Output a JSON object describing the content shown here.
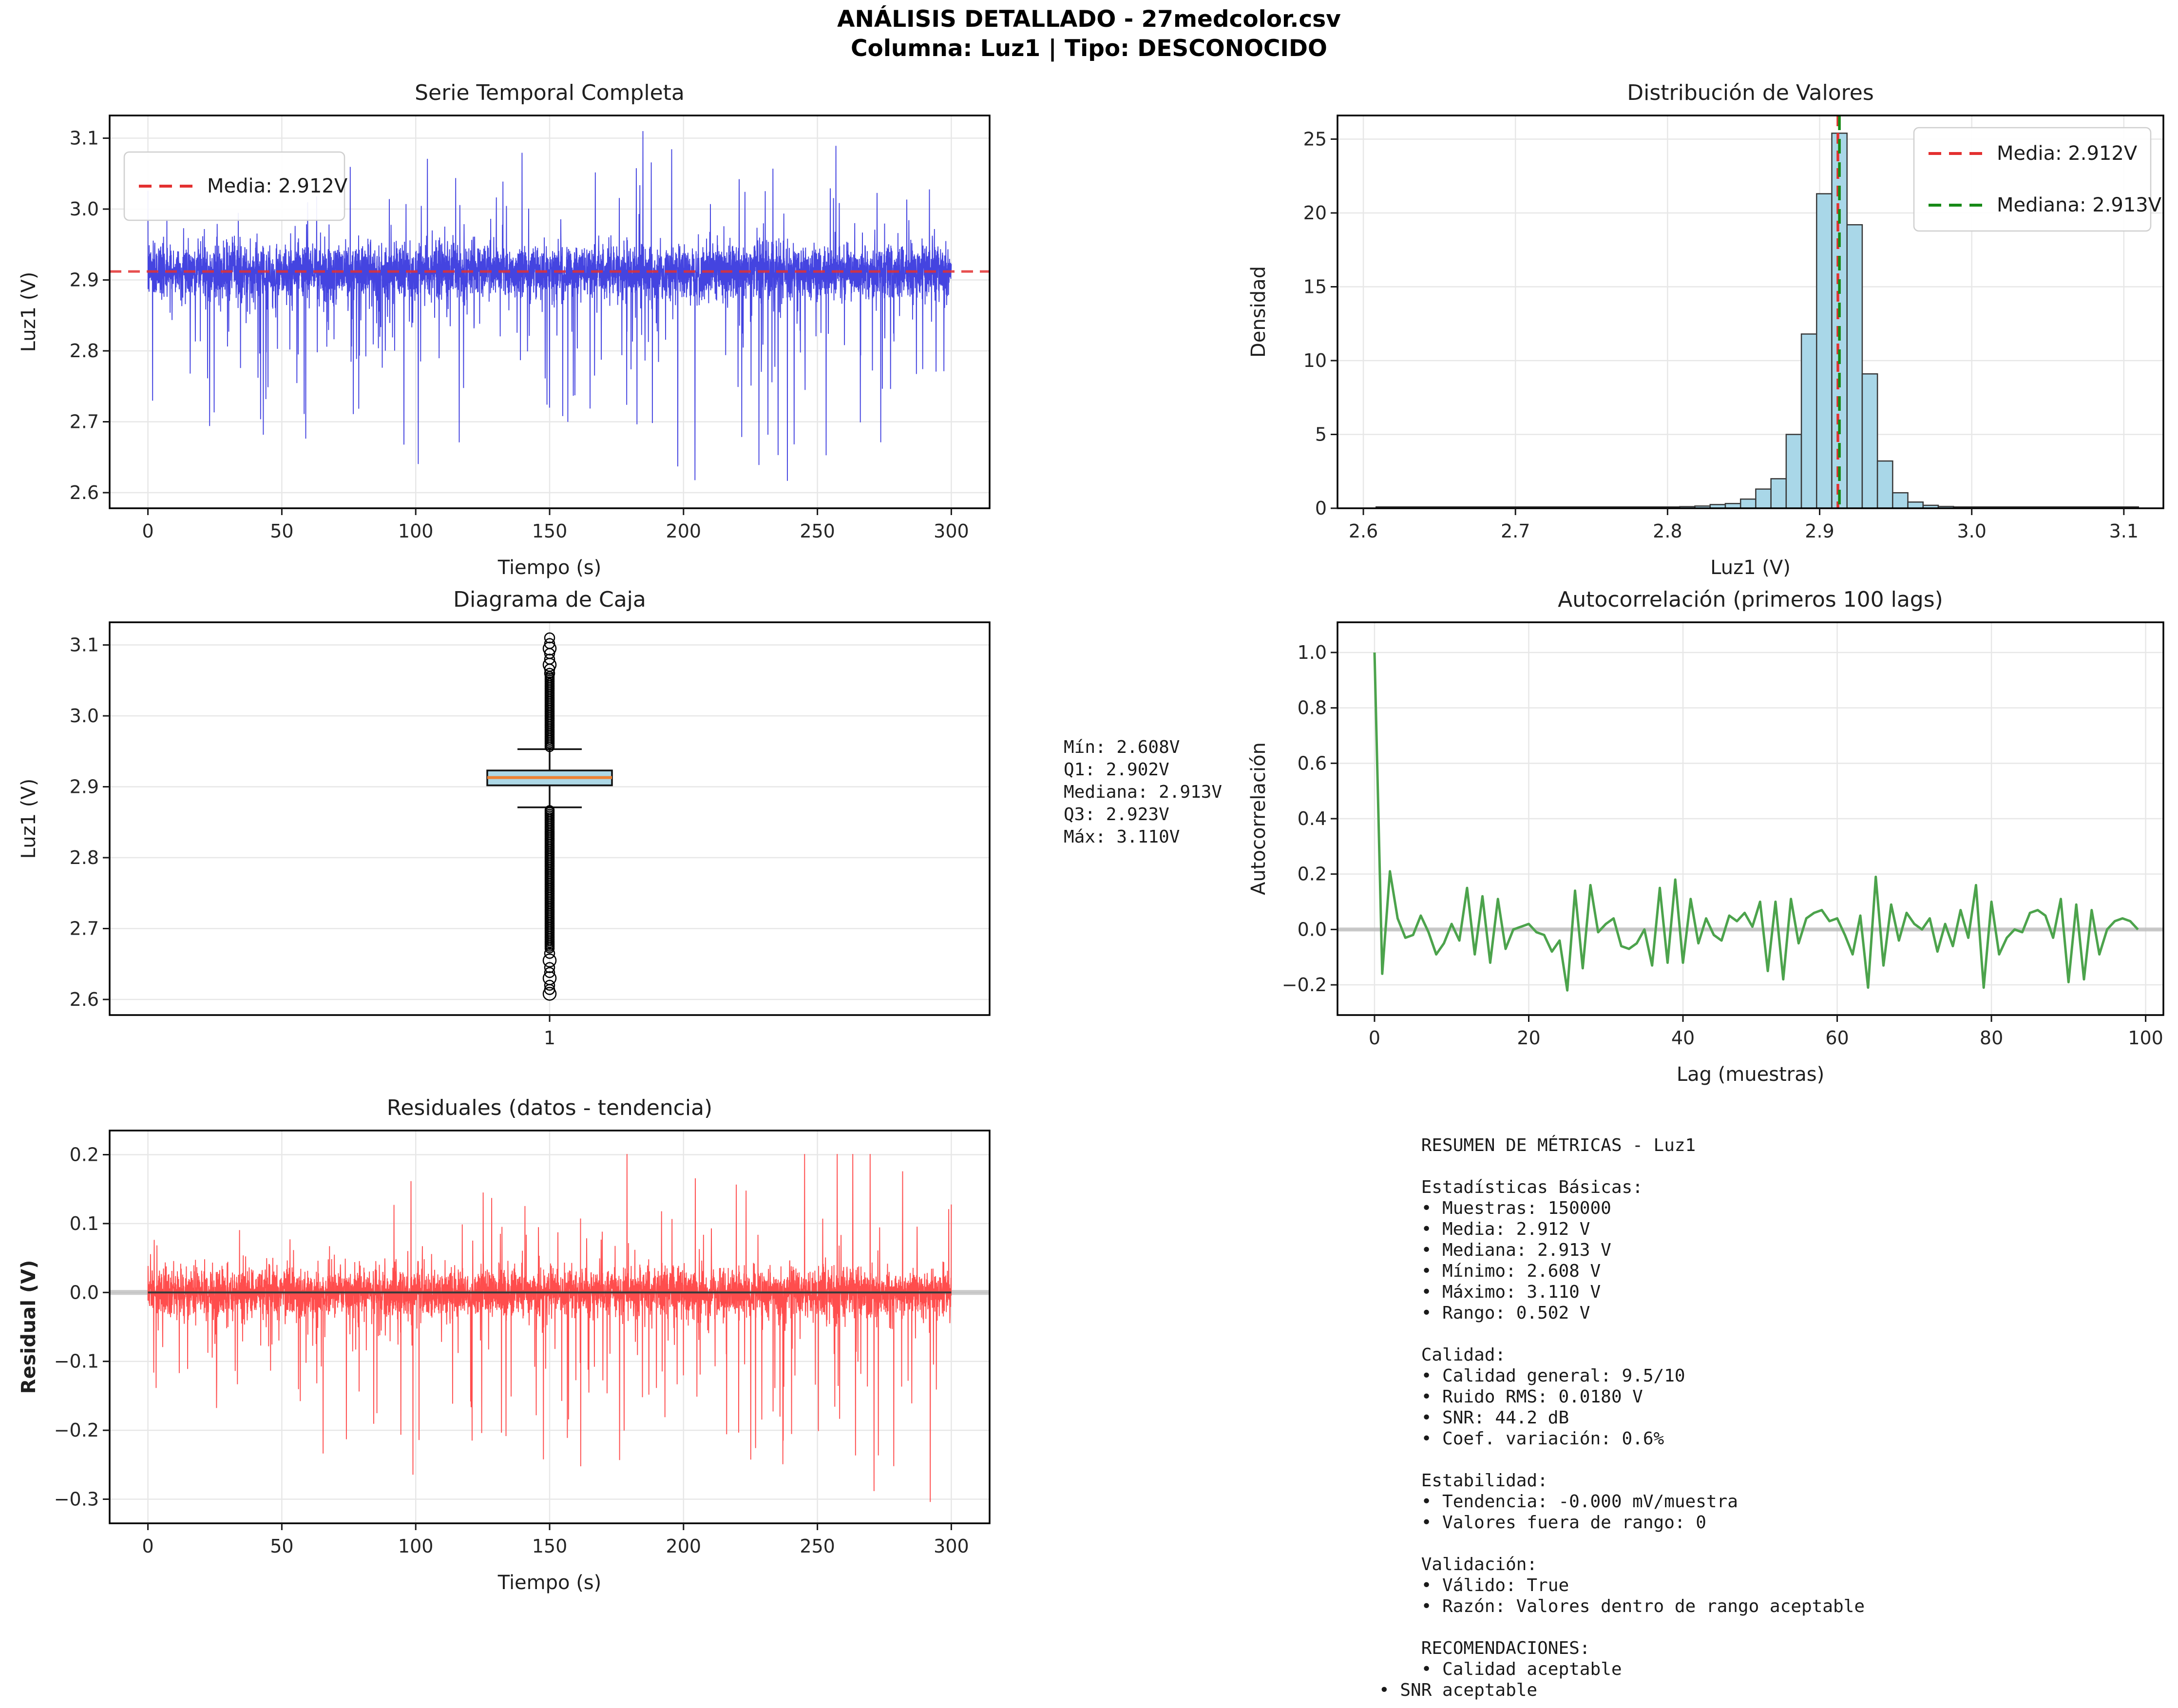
{
  "header": {
    "title_line1": "ANÁLISIS DETALLADO - 27medcolor.csv",
    "title_line2": "Columna: Luz1 | Tipo: DESCONOCIDO"
  },
  "colors": {
    "text": "#1f1f1f",
    "tick_text": "#262626",
    "grid": "#e7e7e7",
    "spine": "#000000",
    "series_blue": "#4444e0",
    "mean_red": "#e33030",
    "median_green": "#178a17",
    "hist_fill": "#a9d7e8",
    "hist_edge": "#383838",
    "box_fill": "#add8e6",
    "box_median_orange": "#ee8233",
    "acf_green": "#4ca34c",
    "resid_red": "#ff4d4d",
    "zero_gray": "#bbbbbb",
    "trend_dark": "#3a3a3a",
    "legend_border": "#cfcfcf",
    "legend_bg": "#ffffff"
  },
  "stats_block": {
    "lines": [
      "Mín: 2.608V",
      "Q1: 2.902V",
      "Mediana: 2.913V",
      "Q3: 2.923V",
      "Máx: 3.110V"
    ]
  },
  "metrics_block": {
    "lines": [
      "    RESUMEN DE MÉTRICAS - Luz1",
      "",
      "    Estadísticas Básicas:",
      "    • Muestras: 150000",
      "    • Media: 2.912 V",
      "    • Mediana: 2.913 V",
      "    • Mínimo: 2.608 V",
      "    • Máximo: 3.110 V",
      "    • Rango: 0.502 V",
      "",
      "    Calidad:",
      "    • Calidad general: 9.5/10",
      "    • Ruido RMS: 0.0180 V",
      "    • SNR: 44.2 dB",
      "    • Coef. variación: 0.6%",
      "",
      "    Estabilidad:",
      "    • Tendencia: -0.000 mV/muestra",
      "    • Valores fuera de rango: 0",
      "",
      "    Validación:",
      "    • Válido: True",
      "    • Razón: Valores dentro de rango aceptable",
      "",
      "    RECOMENDACIONES:",
      "    • Calidad aceptable",
      "• SNR aceptable"
    ]
  },
  "chart_data": [
    {
      "id": "serie",
      "type": "line",
      "title": "Serie Temporal Completa",
      "xlabel": "Tiempo (s)",
      "ylabel": "Luz1 (V)",
      "xlim": [
        -14.3,
        314.3
      ],
      "ylim": [
        2.578,
        3.132
      ],
      "xticks": {
        "values": [
          0,
          50,
          100,
          150,
          200,
          250,
          300
        ],
        "labels": [
          "0",
          "50",
          "100",
          "150",
          "200",
          "250",
          "300"
        ]
      },
      "yticks": {
        "values": [
          2.6,
          2.7,
          2.8,
          2.9,
          3.0,
          3.1
        ],
        "labels": [
          "2.6",
          "2.7",
          "2.8",
          "2.9",
          "3.0",
          "3.1"
        ]
      },
      "grid": true,
      "line_color_key": "series_blue",
      "mean_line": {
        "value": 2.912,
        "color_key": "mean_red",
        "label": "Media: 2.912V"
      },
      "legend": {
        "position": "top-left",
        "entries": [
          {
            "label": "Media: 2.912V",
            "color_key": "mean_red"
          }
        ]
      },
      "signal": {
        "mean": 2.912,
        "noise_sd": 0.019,
        "neg_spike_rate": 0.055,
        "neg_spike_max": 0.31,
        "pos_spike_rate": 0.03,
        "pos_spike_max": 0.2,
        "min": 2.608,
        "max": 3.11,
        "t0": 0,
        "t1": 300,
        "points": 5000,
        "seed": 7,
        "grow": 0.3
      }
    },
    {
      "id": "hist",
      "type": "bar",
      "title": "Distribución de Valores",
      "xlabel": "Luz1 (V)",
      "ylabel": "Densidad",
      "xlim": [
        2.583,
        3.126
      ],
      "ylim": [
        0,
        26.6
      ],
      "xticks": {
        "values": [
          2.6,
          2.7,
          2.8,
          2.9,
          3.0,
          3.1
        ],
        "labels": [
          "2.6",
          "2.7",
          "2.8",
          "2.9",
          "3.0",
          "3.1"
        ]
      },
      "yticks": {
        "values": [
          0,
          5,
          10,
          15,
          20,
          25
        ],
        "labels": [
          "0",
          "5",
          "10",
          "15",
          "20",
          "25"
        ]
      },
      "grid": true,
      "bin_width": 0.01,
      "bins": [
        [
          2.783,
          0.04
        ],
        [
          2.793,
          0.06
        ],
        [
          2.803,
          0.08
        ],
        [
          2.813,
          0.11
        ],
        [
          2.823,
          0.15
        ],
        [
          2.833,
          0.25
        ],
        [
          2.843,
          0.32
        ],
        [
          2.853,
          0.62
        ],
        [
          2.863,
          1.3
        ],
        [
          2.873,
          2.0
        ],
        [
          2.883,
          5.0
        ],
        [
          2.893,
          11.8
        ],
        [
          2.903,
          21.3
        ],
        [
          2.913,
          25.4
        ],
        [
          2.923,
          19.2
        ],
        [
          2.933,
          9.1
        ],
        [
          2.943,
          3.2
        ],
        [
          2.953,
          1.05
        ],
        [
          2.963,
          0.42
        ],
        [
          2.973,
          0.2
        ],
        [
          2.983,
          0.12
        ],
        [
          2.993,
          0.07
        ],
        [
          3.003,
          0.05
        ]
      ],
      "baseline": {
        "from": 2.608,
        "to": 3.11
      },
      "vlines": [
        {
          "value": 2.912,
          "color_key": "mean_red",
          "label": "Media: 2.912V"
        },
        {
          "value": 2.913,
          "color_key": "median_green",
          "label": "Mediana: 2.913V"
        }
      ],
      "legend": {
        "position": "top-right",
        "entries": [
          {
            "label": "Media: 2.912V",
            "color_key": "mean_red"
          },
          {
            "label": "Mediana: 2.913V",
            "color_key": "median_green"
          }
        ]
      }
    },
    {
      "id": "box",
      "type": "box",
      "title": "Diagrama de Caja",
      "xlabel": "",
      "ylabel": "Luz1 (V)",
      "xlim": [
        0.5,
        1.5
      ],
      "ylim": [
        2.578,
        3.132
      ],
      "xticks": {
        "values": [
          1
        ],
        "labels": [
          "1"
        ]
      },
      "yticks": {
        "values": [
          2.6,
          2.7,
          2.8,
          2.9,
          3.0,
          3.1
        ],
        "labels": [
          "2.6",
          "2.7",
          "2.8",
          "2.9",
          "3.0",
          "3.1"
        ]
      },
      "grid": true,
      "box": {
        "q1": 2.902,
        "median": 2.913,
        "q3": 2.923,
        "whisker_low": 2.871,
        "whisker_high": 2.953,
        "min": 2.608,
        "max": 3.11
      },
      "outliers": {
        "upper_dense": {
          "from": 2.956,
          "to": 3.056,
          "step": 0.0025
        },
        "lower_dense": {
          "from": 2.672,
          "to": 2.869,
          "step": 0.0025
        },
        "upper_sparse": [
          3.06,
          3.066,
          3.072,
          3.08,
          3.088,
          3.095,
          3.102,
          3.11
        ],
        "lower_sparse": [
          2.665,
          2.655,
          2.645,
          2.638,
          2.63,
          2.62,
          2.614,
          2.608
        ]
      }
    },
    {
      "id": "acf",
      "type": "line",
      "title": "Autocorrelación (primeros 100 lags)",
      "xlabel": "Lag (muestras)",
      "ylabel": "Autocorrelación",
      "xlim": [
        -4.8,
        102.3
      ],
      "ylim": [
        -0.309,
        1.109
      ],
      "xticks": {
        "values": [
          0,
          20,
          40,
          60,
          80,
          100
        ],
        "labels": [
          "0",
          "20",
          "40",
          "60",
          "80",
          "100"
        ]
      },
      "yticks": {
        "values": [
          -0.2,
          0.0,
          0.2,
          0.4,
          0.6,
          0.8,
          1.0
        ],
        "labels": [
          "−0.2",
          "0.0",
          "0.2",
          "0.4",
          "0.6",
          "0.8",
          "1.0"
        ]
      },
      "grid": true,
      "line_color_key": "acf_green",
      "zero_line": true,
      "values": [
        1.0,
        -0.16,
        0.21,
        0.04,
        -0.03,
        -0.02,
        0.05,
        -0.01,
        -0.09,
        -0.05,
        0.02,
        -0.04,
        0.15,
        -0.09,
        0.12,
        -0.12,
        0.11,
        -0.07,
        0.0,
        0.01,
        0.02,
        -0.01,
        -0.02,
        -0.08,
        -0.04,
        -0.22,
        0.14,
        -0.14,
        0.16,
        -0.01,
        0.02,
        0.04,
        -0.06,
        -0.07,
        -0.05,
        0.0,
        -0.13,
        0.15,
        -0.12,
        0.18,
        -0.12,
        0.11,
        -0.05,
        0.04,
        -0.02,
        -0.04,
        0.05,
        0.03,
        0.06,
        0.01,
        0.1,
        -0.15,
        0.1,
        -0.18,
        0.11,
        -0.05,
        0.04,
        0.06,
        0.07,
        0.03,
        0.04,
        -0.02,
        -0.09,
        0.05,
        -0.21,
        0.19,
        -0.13,
        0.09,
        -0.04,
        0.06,
        0.02,
        0.0,
        0.04,
        -0.08,
        0.02,
        -0.06,
        0.07,
        -0.03,
        0.16,
        -0.21,
        0.1,
        -0.09,
        -0.03,
        0.0,
        -0.01,
        0.06,
        0.07,
        0.05,
        -0.03,
        0.11,
        -0.19,
        0.09,
        -0.18,
        0.07,
        -0.09,
        0.0,
        0.03,
        0.04,
        0.03,
        0.0
      ]
    },
    {
      "id": "resid",
      "type": "line",
      "title": "Residuales (datos - tendencia)",
      "xlabel": "Tiempo (s)",
      "ylabel": "Residual (V)",
      "ylabel_bold": true,
      "xlim": [
        -14.3,
        314.3
      ],
      "ylim": [
        -0.335,
        0.235
      ],
      "xticks": {
        "values": [
          0,
          50,
          100,
          150,
          200,
          250,
          300
        ],
        "labels": [
          "0",
          "50",
          "100",
          "150",
          "200",
          "250",
          "300"
        ]
      },
      "yticks": {
        "values": [
          0.2,
          0.1,
          0.0,
          -0.1,
          -0.2,
          -0.3
        ],
        "labels": [
          "0.2",
          "0.1",
          "0.0",
          "−0.1",
          "−0.2",
          "−0.3"
        ]
      },
      "grid": true,
      "line_color_key": "resid_red",
      "zero_line": true,
      "trend_line": true,
      "signal": {
        "mean": 0,
        "noise_sd": 0.017,
        "neg_spike_rate": 0.05,
        "neg_spike_max": 0.3,
        "pos_spike_rate": 0.032,
        "pos_spike_max": 0.205,
        "min": -0.304,
        "max": 0.201,
        "t0": 0,
        "t1": 300,
        "points": 5000,
        "seed": 13,
        "grow": 0.8
      }
    }
  ]
}
